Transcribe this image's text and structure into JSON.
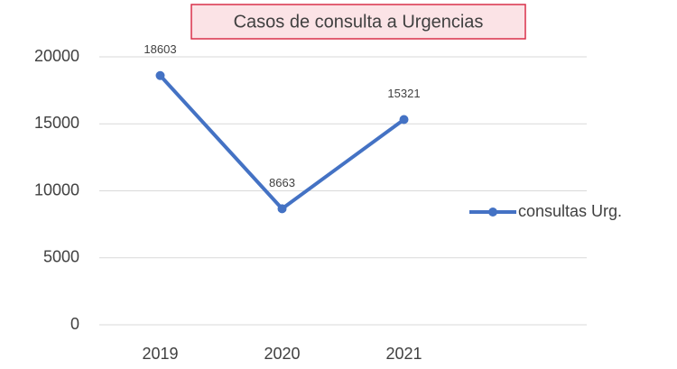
{
  "chart_data": {
    "type": "line",
    "title": "Casos de consulta a Urgencias",
    "categories": [
      "2019",
      "2020",
      "2021",
      null
    ],
    "series": [
      {
        "name": "consultas Urg.",
        "color": "#4472c4",
        "values": [
          18603,
          8663,
          15321,
          null
        ]
      }
    ],
    "ylim": [
      0,
      20000
    ],
    "yticks": [
      0,
      5000,
      10000,
      15000,
      20000
    ],
    "grid": true,
    "legend": "right"
  }
}
